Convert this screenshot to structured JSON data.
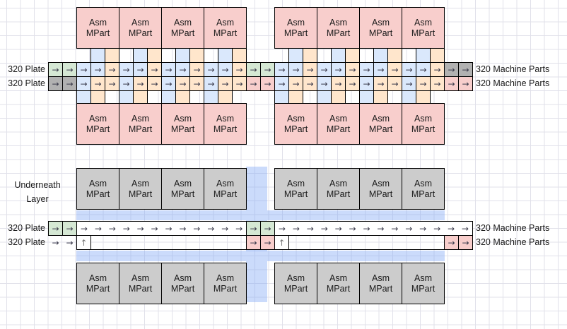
{
  "labels": {
    "plate": "320 Plate",
    "machine_parts": "320 Machine Parts",
    "underneath_line1": "Underneath",
    "underneath_line2": "Layer",
    "box_line1": "Asm",
    "box_line2": "MPart"
  },
  "icons": {
    "arrow_right": "→",
    "arrow_up": "↑"
  },
  "colors": {
    "box_pink": "#f8cecc",
    "box_gray": "#cccccc",
    "cell_blue": "#dae8fc",
    "cell_orange": "#ffe6cc",
    "cell_green": "#d5e8d4",
    "cell_gray": "#b1b1b1",
    "cell_pink": "#f8cecc",
    "band_blue": "rgba(125,165,245,0.40)",
    "shape_border": "#000000",
    "arrow": "#39394a",
    "arrow_up": "#777777",
    "grid_line": "#e1e1ea",
    "text": "#1a1a1a"
  }
}
